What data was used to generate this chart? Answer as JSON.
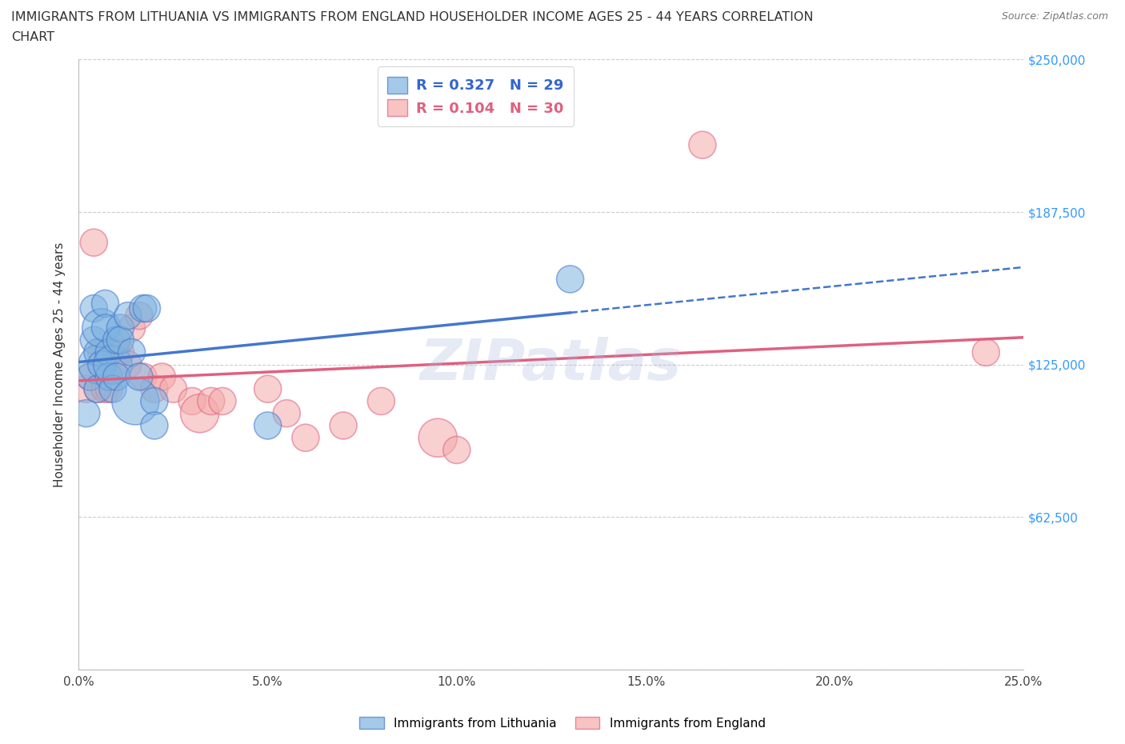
{
  "title_line1": "IMMIGRANTS FROM LITHUANIA VS IMMIGRANTS FROM ENGLAND HOUSEHOLDER INCOME AGES 25 - 44 YEARS CORRELATION",
  "title_line2": "CHART",
  "ylabel": "Householder Income Ages 25 - 44 years",
  "source": "Source: ZipAtlas.com",
  "watermark": "ZIPatlas",
  "xlim": [
    0.0,
    0.25
  ],
  "ylim": [
    0,
    250000
  ],
  "yticks": [
    0,
    62500,
    125000,
    187500,
    250000
  ],
  "ytick_labels": [
    "",
    "$62,500",
    "$125,000",
    "$187,500",
    "$250,000"
  ],
  "xticks": [
    0.0,
    0.05,
    0.1,
    0.15,
    0.2,
    0.25
  ],
  "xtick_labels": [
    "0.0%",
    "5.0%",
    "10.0%",
    "15.0%",
    "20.0%",
    "25.0%"
  ],
  "R_lithuania": 0.327,
  "N_lithuania": 29,
  "R_england": 0.104,
  "N_england": 30,
  "legend_label_lithuania": "Immigrants from Lithuania",
  "legend_label_england": "Immigrants from England",
  "color_lithuania": "#7EB3E0",
  "color_england": "#F4AAAA",
  "color_trend_lithuania": "#4477CC",
  "color_trend_england": "#E06080",
  "color_label_blue": "#3366CC",
  "color_label_pink": "#E06080",
  "color_axis_labels": "#3399FF",
  "lithuania_x": [
    0.002,
    0.003,
    0.004,
    0.004,
    0.005,
    0.005,
    0.005,
    0.006,
    0.006,
    0.007,
    0.007,
    0.008,
    0.008,
    0.009,
    0.009,
    0.01,
    0.01,
    0.011,
    0.011,
    0.013,
    0.014,
    0.015,
    0.016,
    0.017,
    0.018,
    0.02,
    0.02,
    0.05,
    0.13
  ],
  "lithuania_y": [
    105000,
    120000,
    135000,
    148000,
    125000,
    115000,
    130000,
    140000,
    125000,
    150000,
    140000,
    130000,
    120000,
    125000,
    115000,
    135000,
    120000,
    140000,
    135000,
    145000,
    130000,
    110000,
    120000,
    148000,
    148000,
    110000,
    100000,
    100000,
    160000
  ],
  "lithuania_sizes": [
    1,
    1,
    1,
    1,
    2,
    1,
    1,
    2,
    1,
    1,
    1,
    1,
    1,
    2,
    1,
    1,
    1,
    1,
    1,
    1,
    1,
    3,
    1,
    1,
    1,
    1,
    1,
    1,
    1
  ],
  "england_x": [
    0.002,
    0.003,
    0.004,
    0.005,
    0.006,
    0.007,
    0.008,
    0.009,
    0.01,
    0.011,
    0.013,
    0.014,
    0.016,
    0.017,
    0.02,
    0.022,
    0.025,
    0.03,
    0.032,
    0.035,
    0.038,
    0.05,
    0.055,
    0.06,
    0.07,
    0.08,
    0.095,
    0.1,
    0.165,
    0.24
  ],
  "england_y": [
    115000,
    120000,
    175000,
    115000,
    130000,
    115000,
    115000,
    125000,
    130000,
    130000,
    125000,
    140000,
    145000,
    120000,
    115000,
    120000,
    115000,
    110000,
    105000,
    110000,
    110000,
    115000,
    105000,
    95000,
    100000,
    110000,
    95000,
    90000,
    215000,
    130000
  ],
  "england_sizes": [
    1,
    1,
    1,
    1,
    1,
    1,
    1,
    1,
    1,
    1,
    1,
    1,
    1,
    1,
    1,
    1,
    1,
    1,
    2,
    1,
    1,
    1,
    1,
    1,
    1,
    1,
    2,
    1,
    1,
    1
  ],
  "lith_trend_solid_end": 0.13,
  "lith_trend_dash_start": 0.13,
  "lith_trend_dash_end": 0.25
}
